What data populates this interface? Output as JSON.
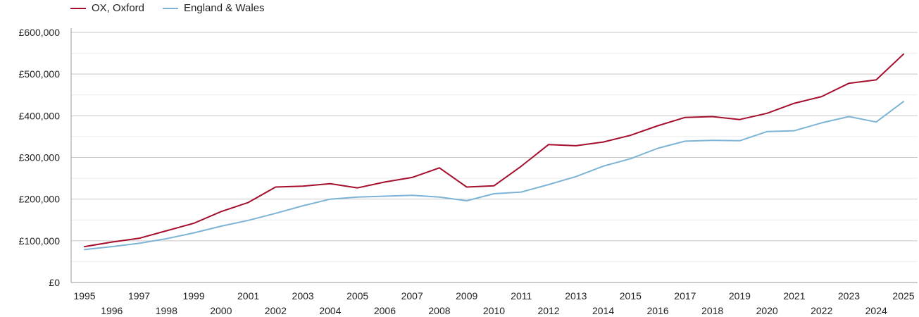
{
  "chart_data": {
    "type": "line",
    "title": "",
    "xlabel": "",
    "ylabel": "",
    "x": [
      1995,
      1996,
      1997,
      1998,
      1999,
      2000,
      2001,
      2002,
      2003,
      2004,
      2005,
      2006,
      2007,
      2008,
      2009,
      2010,
      2011,
      2012,
      2013,
      2014,
      2015,
      2016,
      2017,
      2018,
      2019,
      2020,
      2021,
      2022,
      2023,
      2024,
      2025
    ],
    "ylim": [
      0,
      600000
    ],
    "yticks": [
      0,
      100000,
      200000,
      300000,
      400000,
      500000,
      600000
    ],
    "ytick_labels": [
      "£0",
      "£100,000",
      "£200,000",
      "£300,000",
      "£400,000",
      "£500,000",
      "£600,000"
    ],
    "xtick_labels": [
      "1995",
      "1996",
      "1997",
      "1998",
      "1999",
      "2000",
      "2001",
      "2002",
      "2003",
      "2004",
      "2005",
      "2006",
      "2007",
      "2008",
      "2009",
      "2010",
      "2011",
      "2012",
      "2013",
      "2014",
      "2015",
      "2016",
      "2017",
      "2018",
      "2019",
      "2020",
      "2021",
      "2022",
      "2023",
      "2024",
      "2025"
    ],
    "grid": true,
    "legend_position": "top-left",
    "series": [
      {
        "name": "OX, Oxford",
        "color": "#a50f2d",
        "values": [
          86000,
          97000,
          106000,
          124000,
          142000,
          170000,
          192000,
          229000,
          231000,
          237000,
          227000,
          241000,
          252000,
          275000,
          229000,
          232000,
          279000,
          331000,
          328000,
          337000,
          353000,
          376000,
          396000,
          398000,
          391000,
          406000,
          430000,
          446000,
          478000,
          486000,
          548000
        ]
      },
      {
        "name": "England & Wales",
        "color": "#7db4d6",
        "values": [
          79000,
          86000,
          94000,
          105000,
          119000,
          135000,
          149000,
          166000,
          184000,
          200000,
          205000,
          207000,
          209000,
          205000,
          196000,
          213000,
          217000,
          235000,
          254000,
          279000,
          297000,
          322000,
          339000,
          341000,
          340000,
          362000,
          364000,
          383000,
          398000,
          385000,
          434000
        ]
      }
    ]
  }
}
